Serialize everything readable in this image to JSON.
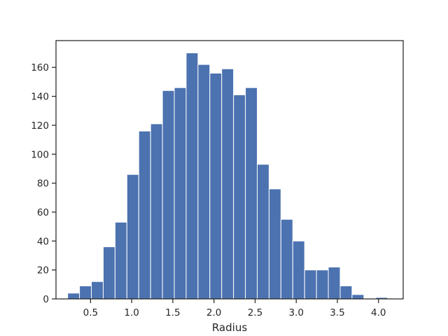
{
  "chart_data": {
    "type": "bar",
    "title": "",
    "xlabel": "Radius",
    "ylabel": "",
    "xlim": [
      0.08,
      4.3
    ],
    "ylim": [
      0,
      178.5
    ],
    "grid": false,
    "bar_color": "#4c72b0",
    "bins": [
      {
        "x0": 0.222,
        "x1": 0.366,
        "count": 4
      },
      {
        "x0": 0.366,
        "x1": 0.51,
        "count": 9
      },
      {
        "x0": 0.51,
        "x1": 0.654,
        "count": 12
      },
      {
        "x0": 0.654,
        "x1": 0.798,
        "count": 36
      },
      {
        "x0": 0.798,
        "x1": 0.942,
        "count": 53
      },
      {
        "x0": 0.942,
        "x1": 1.086,
        "count": 86
      },
      {
        "x0": 1.086,
        "x1": 1.23,
        "count": 116
      },
      {
        "x0": 1.23,
        "x1": 1.374,
        "count": 121
      },
      {
        "x0": 1.374,
        "x1": 1.518,
        "count": 144
      },
      {
        "x0": 1.518,
        "x1": 1.662,
        "count": 146
      },
      {
        "x0": 1.662,
        "x1": 1.806,
        "count": 170
      },
      {
        "x0": 1.806,
        "x1": 1.95,
        "count": 162
      },
      {
        "x0": 1.95,
        "x1": 2.094,
        "count": 156
      },
      {
        "x0": 2.094,
        "x1": 2.238,
        "count": 159
      },
      {
        "x0": 2.238,
        "x1": 2.382,
        "count": 141
      },
      {
        "x0": 2.382,
        "x1": 2.526,
        "count": 146
      },
      {
        "x0": 2.526,
        "x1": 2.67,
        "count": 93
      },
      {
        "x0": 2.67,
        "x1": 2.814,
        "count": 76
      },
      {
        "x0": 2.814,
        "x1": 2.958,
        "count": 55
      },
      {
        "x0": 2.958,
        "x1": 3.102,
        "count": 40
      },
      {
        "x0": 3.102,
        "x1": 3.246,
        "count": 20
      },
      {
        "x0": 3.246,
        "x1": 3.39,
        "count": 20
      },
      {
        "x0": 3.39,
        "x1": 3.534,
        "count": 22
      },
      {
        "x0": 3.534,
        "x1": 3.678,
        "count": 9
      },
      {
        "x0": 3.678,
        "x1": 3.822,
        "count": 3
      },
      {
        "x0": 3.822,
        "x1": 3.966,
        "count": 0
      },
      {
        "x0": 3.966,
        "x1": 4.11,
        "count": 1
      }
    ],
    "x_ticks": [
      {
        "value": 0.5,
        "label": "0.5"
      },
      {
        "value": 1.0,
        "label": "1.0"
      },
      {
        "value": 1.5,
        "label": "1.5"
      },
      {
        "value": 2.0,
        "label": "2.0"
      },
      {
        "value": 2.5,
        "label": "2.5"
      },
      {
        "value": 3.0,
        "label": "3.0"
      },
      {
        "value": 3.5,
        "label": "3.5"
      },
      {
        "value": 4.0,
        "label": "4.0"
      }
    ],
    "y_ticks": [
      {
        "value": 0,
        "label": "0"
      },
      {
        "value": 20,
        "label": "20"
      },
      {
        "value": 40,
        "label": "40"
      },
      {
        "value": 60,
        "label": "60"
      },
      {
        "value": 80,
        "label": "80"
      },
      {
        "value": 100,
        "label": "100"
      },
      {
        "value": 120,
        "label": "120"
      },
      {
        "value": 140,
        "label": "140"
      },
      {
        "value": 160,
        "label": "160"
      }
    ]
  }
}
